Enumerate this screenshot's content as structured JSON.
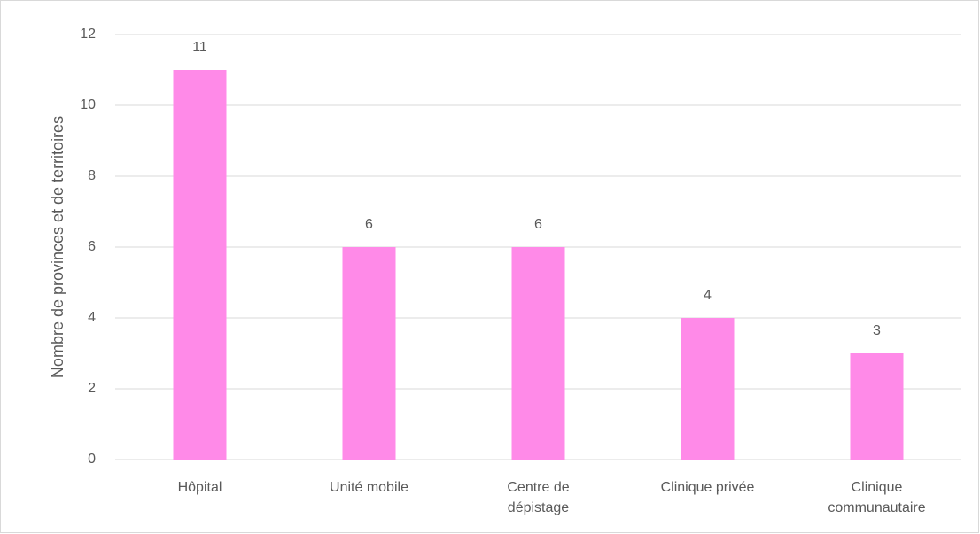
{
  "chart_data": {
    "type": "bar",
    "y_axis_label": "Nombre de provinces et de territoires",
    "categories": [
      "Hôpital",
      "Unité mobile",
      "Centre de dépistage",
      "Clinique privée",
      "Clinique communautaire"
    ],
    "values": [
      11,
      6,
      6,
      4,
      3
    ],
    "color": "#ff8ae8",
    "ylim": [
      0,
      12
    ],
    "yticks": [
      0,
      2,
      4,
      6,
      8,
      10,
      12
    ],
    "grid": true
  }
}
